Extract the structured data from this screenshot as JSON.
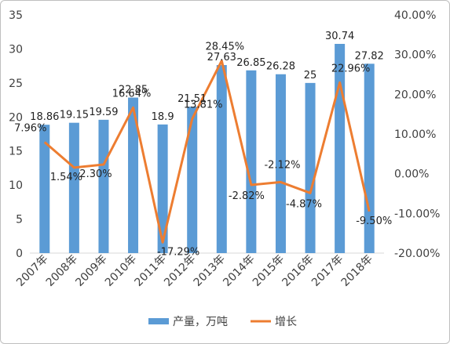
{
  "chart_data": {
    "type": "bar+line",
    "categories": [
      "2007年",
      "2008年",
      "2009年",
      "2010年",
      "2011年",
      "2012年",
      "2013年",
      "2014年",
      "2015年",
      "2016年",
      "2017年",
      "2018年"
    ],
    "series": [
      {
        "name": "产量，万吨",
        "kind": "bar",
        "axis": "left",
        "color": "#5B9BD5",
        "values": [
          18.86,
          19.15,
          19.59,
          22.85,
          18.9,
          21.51,
          27.63,
          26.85,
          26.28,
          25,
          30.74,
          27.82
        ],
        "labels": [
          "18.86",
          "19.15",
          "19.59",
          "22.85",
          "18.9",
          "21.51",
          "27.63",
          "26.85",
          "26.28",
          "25",
          "30.74",
          "27.82"
        ]
      },
      {
        "name": "增长",
        "kind": "line",
        "axis": "right",
        "color": "#ED7D31",
        "values": [
          7.96,
          1.54,
          2.3,
          16.64,
          -17.29,
          13.81,
          28.45,
          -2.82,
          -2.12,
          -4.87,
          22.96,
          -9.5
        ],
        "labels": [
          "7.96%",
          "1.54%",
          "2.30%",
          "16.64%",
          "-17.29%",
          "13.81%",
          "28.45%",
          "-2.82%",
          "-2.12%",
          "-4.87%",
          "22.96%",
          "-9.50%"
        ]
      }
    ],
    "y_left": {
      "ylim": [
        0,
        35
      ],
      "ticks": [
        "0",
        "5",
        "10",
        "15",
        "20",
        "25",
        "30",
        "35"
      ]
    },
    "y_right": {
      "ylim": [
        -20,
        40
      ],
      "ticks": [
        "-20.00%",
        "-10.00%",
        "0.00%",
        "10.00%",
        "20.00%",
        "30.00%",
        "40.00%"
      ]
    },
    "grid": false,
    "legend_position": "bottom"
  }
}
